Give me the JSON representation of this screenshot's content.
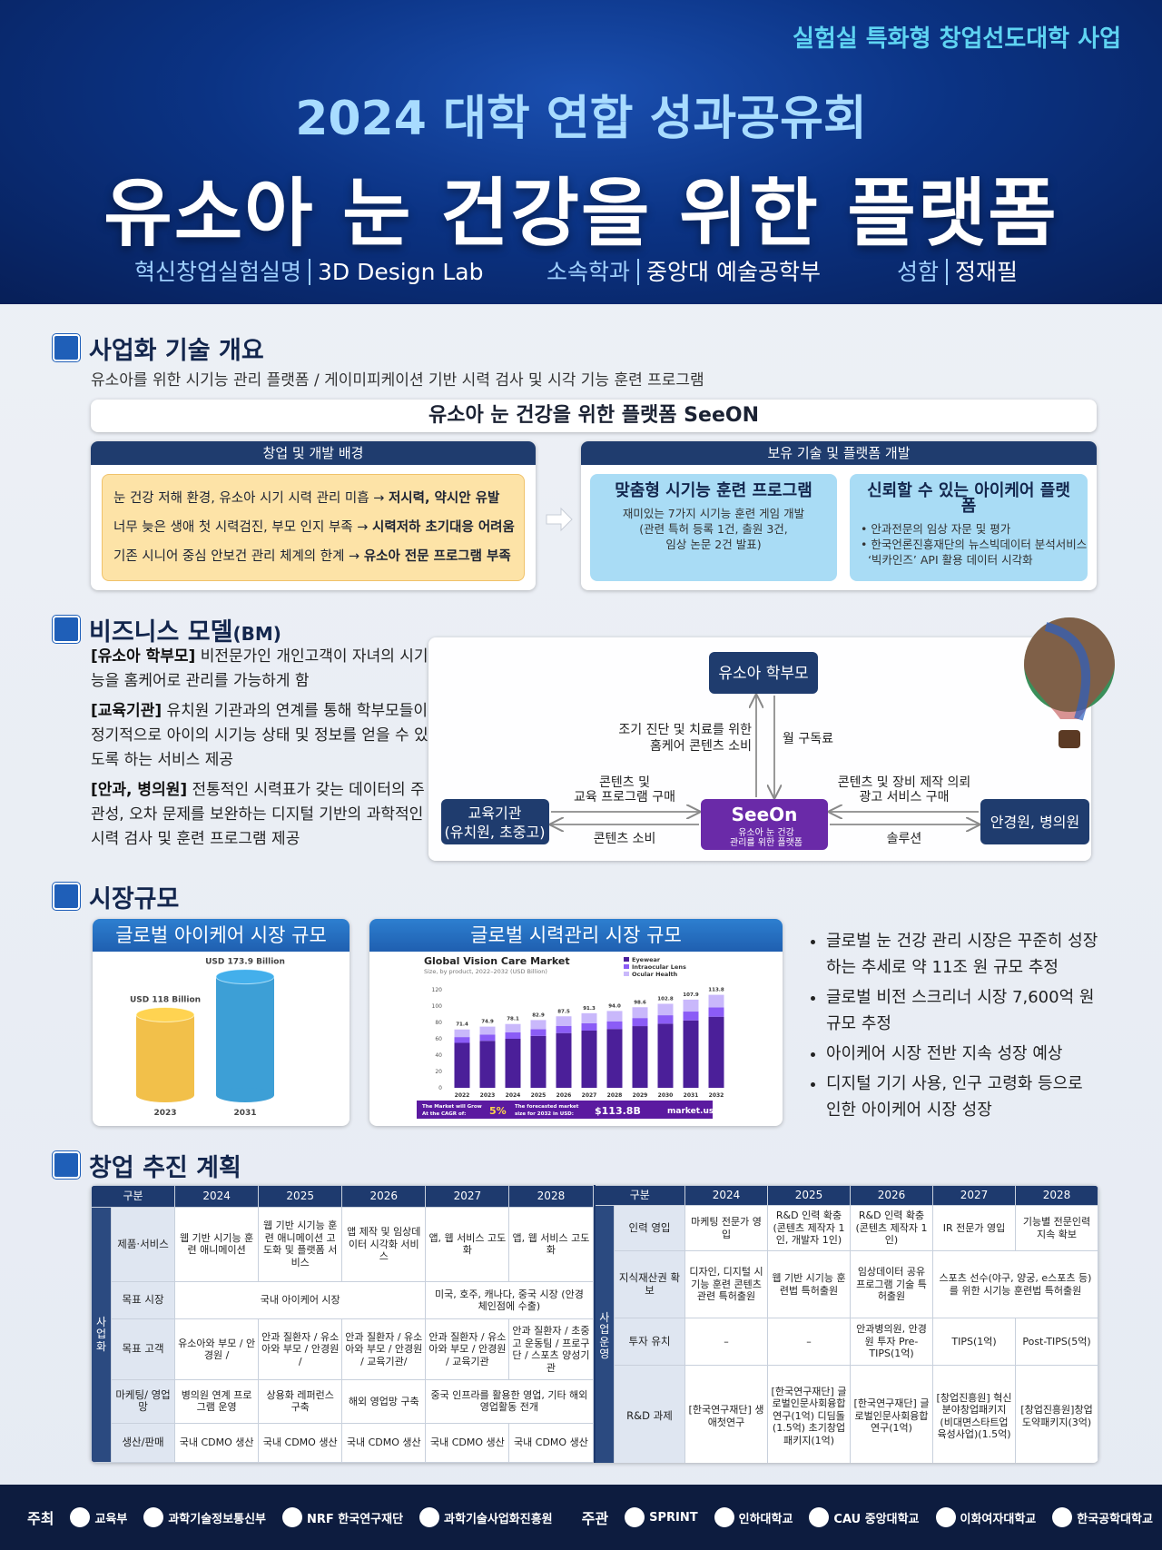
{
  "header": {
    "program": "실험실 특화형 창업선도대학 사업",
    "year_title": "2024 대학 연합 성과공유회",
    "title": "유소아 눈 건강을 위한 플랫폼",
    "info": [
      {
        "label": "혁신창업실험실명",
        "value": "3D Design Lab"
      },
      {
        "label": "소속학과",
        "value": "중앙대 예술공학부"
      },
      {
        "label": "성함",
        "value": "정재필"
      }
    ]
  },
  "overview": {
    "title": "사업화 기술 개요",
    "subtitle": "유소아를 위한 시기능 관리 플랫폼 / 게이미피케이션 기반 시력 검사 및 시각 기능 훈련 프로그램",
    "platform": "유소아 눈 건강을 위한 플랫폼 SeeON",
    "background": {
      "heading": "창업 및 개발 배경",
      "lines": [
        {
          "text": "눈 건강 저해 환경, 유소아 시기 시력 관리 미흡 → ",
          "emphasis": "저시력, 약시안 유발"
        },
        {
          "text": "너무 늦은 생애 첫 시력검진, 부모 인지 부족 → ",
          "emphasis": "시력저하 초기대응 어려움"
        },
        {
          "text": "기존 시니어 중심 안보건 관리 체계의 한계 → ",
          "emphasis": "유소아 전문 프로그램 부족"
        }
      ]
    },
    "technology": {
      "heading": "보유 기술 및 플랫폼 개발",
      "cards": [
        {
          "title": "맞춤형 시기능 훈련 프로그램",
          "body": [
            "재미있는 7가지 시기능 훈련 게임 개발",
            "(관련 특허 등록 1건, 출원 3건,",
            "임상 논문 2건 발표)"
          ]
        },
        {
          "title": "신뢰할 수 있는 아이케어 플랫폼",
          "body": [
            "• 안과전문의 임상 자문 및 평가",
            "• 한국언론진흥재단의 뉴스빅데이터 분석서비스",
            "  ‘빅카인즈’ API 활용 데이터 시각화"
          ]
        }
      ]
    }
  },
  "business_model": {
    "title": "비즈니스 모델",
    "suffix": "(BM)",
    "items": [
      {
        "tag": "[유소아 학부모]",
        "text": " 비전문가인 개인고객이 자녀의 시기능을 홈케어로 관리를 가능하게 함"
      },
      {
        "tag": "[교육기관]",
        "text": " 유치원 기관과의 연계를 통해 학부모들이 정기적으로 아이의 시기능 상태 및 정보를 얻을 수 있도록 하는 서비스 제공"
      },
      {
        "tag": "[안과, 병의원]",
        "text": " 전통적인 시력표가 갖는 데이터의 주관성, 오차 문제를 보완하는 디지털 기반의 과학적인 시력 검사 및 훈련 프로그램 제공"
      }
    ],
    "diagram": {
      "parent": "유소아 학부모",
      "school": [
        "교육기관",
        "(유치원, 초중고)"
      ],
      "platform": {
        "label": "SeeOn",
        "caption": [
          "유소아 눈 건강",
          "관리를 위한 플랫폼"
        ]
      },
      "clinic": "안경원, 병의원",
      "edges": {
        "parent_consume": [
          "조기 진단 및 치료를 위한",
          "홈케어 콘텐츠 소비"
        ],
        "parent_fee": [
          "월 구독료"
        ],
        "school_buy": [
          "콘텐츠 및",
          "교육 프로그램 구매"
        ],
        "school_consume": [
          "콘텐츠 소비"
        ],
        "clinic_buy": [
          "콘텐츠 및 장비 제작 의뢰",
          "광고 서비스 구매"
        ],
        "clinic_solution": [
          "솔루션"
        ]
      }
    }
  },
  "market": {
    "title": "시장규모",
    "charts": [
      {
        "type": "cylinder",
        "heading": "글로벌 아이케어 시장 규모",
        "categories": [
          "2023",
          "2031"
        ],
        "values": [
          118,
          173.9
        ],
        "value_labels": [
          "USD 118 Billion",
          "USD 173.9 Billion"
        ],
        "colors": [
          "#f2c04a",
          "#3d9fd6"
        ]
      },
      {
        "type": "stacked_bar",
        "heading": "글로벌 시력관리 시장 규모",
        "title": "Global Vision Care Market",
        "subtitle": "Size, by product, 2022–2032 (USD Billion)",
        "categories": [
          "2022",
          "2023",
          "2024",
          "2025",
          "2026",
          "2027",
          "2028",
          "2029",
          "2030",
          "2031",
          "2032"
        ],
        "series": [
          {
            "name": "Eyewear",
            "color": "#4b1f99",
            "values": [
              55,
              57.5,
              60,
              63.5,
              67,
              70,
              72,
              75.5,
              78.5,
              82.5,
              87
            ]
          },
          {
            "name": "Intraocular Lens",
            "color": "#8b5cf6",
            "values": [
              7.1,
              7.5,
              7.8,
              8.3,
              8.8,
              9.1,
              9.4,
              9.9,
              10.3,
              10.8,
              11.4
            ]
          },
          {
            "name": "Ocular Health",
            "color": "#c9b8fb",
            "values": [
              9.3,
              9.9,
              10.3,
              11.1,
              11.7,
              12.2,
              12.6,
              13.2,
              14,
              14.6,
              15.4
            ]
          }
        ],
        "value_labels": [
          "71.4",
          "74.9",
          "78.1",
          "82.9",
          "87.5",
          "91.3",
          "94.0",
          "98.6",
          "102.8",
          "107.9",
          "113.8"
        ],
        "ylim": [
          0,
          120
        ],
        "yticks": [
          0,
          20,
          40,
          60,
          80,
          100,
          120
        ],
        "footer": {
          "cagr_label": [
            "The Market will Grow",
            "At the CAGR of:"
          ],
          "cagr": "5%",
          "forecast_label": [
            "The forecasted market",
            "size for 2032 in USD:"
          ],
          "forecast": "$113.8B",
          "brand": "market.us"
        }
      }
    ],
    "bullets": [
      "글로벌 눈 건강 관리 시장은 꾸준히 성장하는 추세로 약 11조 원 규모 추정",
      "글로벌 비전 스크리너 시장 7,600억 원 규모 추정",
      "아이케어 시장 전반 지속 성장 예상",
      "디지털 기기 사용, 인구 고령화 등으로 인한 아이케어 시장 성장"
    ]
  },
  "plan": {
    "title": "창업 추진 계획",
    "tables": [
      {
        "header": [
          "구분",
          "2024",
          "2025",
          "2026",
          "2027",
          "2028"
        ],
        "group": "사업화",
        "rows": [
          {
            "label": "제품·서비스",
            "cells": [
              "웹 기반 시기능 훈련 애니메이션",
              "웹 기반 시기능 훈련 애니메이션 고도화 및 플랫폼 서비스",
              "앱 제작 및 임상데이터 시각화 서비스",
              "앱, 웹 서비스 고도화",
              "앱, 웹 서비스 고도화"
            ]
          },
          {
            "label": "목표 시장",
            "cells": [
              "국내 아이케어 시장",
              null,
              null,
              "미국, 호주, 캐나다, 중국 시장 (안경 체인점에 수출)",
              null
            ]
          },
          {
            "label": "목표 고객",
            "cells": [
              "유소아와 부모 / 안경원 /",
              "안과 질환자 / 유소아와 부모 / 안경원 /",
              "안과 질환자 / 유소아와 부모 / 안경원 / 교육기관/",
              "안과 질환자 / 유소아와 부모 / 안경원 / 교육기관",
              "안과 질환자 / 초중고 운동팀 / 프로구단 / 스포츠 양성기관"
            ]
          },
          {
            "label": "마케팅/ 영업망",
            "cells": [
              "병의원 연계 프로그램 운영",
              "상용화 레퍼런스 구축",
              "해외 영업망 구축",
              "중국 인프라를 활용한 영업, 기타 해외 영업활동 전개",
              null
            ]
          },
          {
            "label": "생산/판매",
            "cells": [
              "국내 CDMO 생산",
              "국내 CDMO 생산",
              "국내 CDMO 생산",
              "국내 CDMO 생산",
              "국내 CDMO 생산"
            ]
          }
        ]
      },
      {
        "header": [
          "구분",
          "2024",
          "2025",
          "2026",
          "2027",
          "2028"
        ],
        "group": "사업운영",
        "rows": [
          {
            "label": "인력 영입",
            "cells": [
              "마케팅 전문가 영입",
              "R&D 인력 확충 (콘텐츠 제작자 1인, 개발자 1인)",
              "R&D 인력 확충 (콘텐츠 제작자 1인)",
              "IR 전문가 영입",
              "기능별 전문인력 지속 확보"
            ]
          },
          {
            "label": "지식재산권 확보",
            "cells": [
              "디자인, 디지털 시기능 훈련 콘텐츠 관련 특허출원",
              "웹 기반 시기능 훈련법 특허출원",
              "임상데이터 공유 프로그램 기술 특허출원",
              "스포츠 선수(야구, 양궁, e스포츠 등)를 위한 시기능 훈련법 특허출원",
              null
            ]
          },
          {
            "label": "투자 유치",
            "cells": [
              "–",
              "–",
              "안과병의원, 안경원 투자 Pre-TIPS(1억)",
              "TIPS(1억)",
              "Post-TIPS(5억)"
            ]
          },
          {
            "label": "R&D 과제",
            "cells": [
              "[한국연구재단] 생애첫연구",
              "[한국연구재단] 글로벌인문사회융합연구(1억) 디딤돌(1.5억) 초기창업패키지(1억)",
              "[한국연구재단] 글로벌인문사회융합연구(1억)",
              "[창업진흥원] 혁신분야창업패키지(비대면스타트업육성사업)(1.5억)",
              "[창업진흥원]창업도약패키지(3억)"
            ]
          }
        ]
      }
    ]
  },
  "footer": {
    "host_label": "주최",
    "hosts": [
      "교육부",
      "과학기술정보통신부",
      "NRF 한국연구재단",
      "과학기술사업화진흥원"
    ],
    "organizer_label": "주관",
    "organizers": [
      "SPRINT",
      "인하대학교",
      "CAU 중앙대학교",
      "이화여자대학교",
      "한국공학대학교"
    ]
  }
}
